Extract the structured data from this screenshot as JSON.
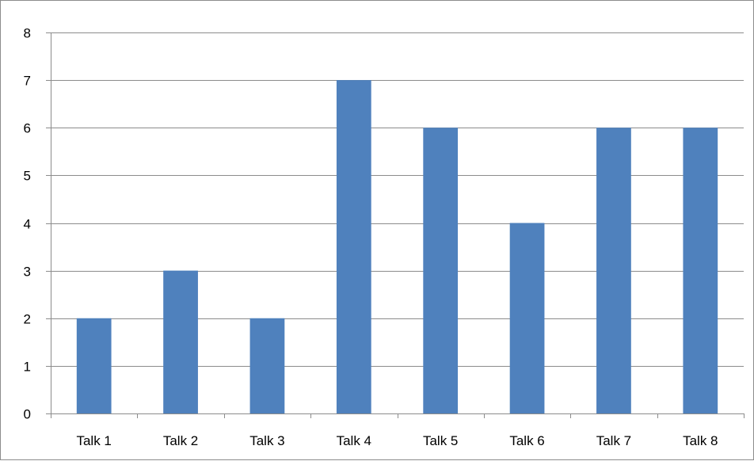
{
  "chart_data": {
    "type": "bar",
    "categories": [
      "Talk 1",
      "Talk 2",
      "Talk 3",
      "Talk 4",
      "Talk 5",
      "Talk 6",
      "Talk 7",
      "Talk 8"
    ],
    "values": [
      2,
      3,
      2,
      7,
      6,
      4,
      6,
      6
    ],
    "title": "",
    "xlabel": "",
    "ylabel": "",
    "ylim": [
      0,
      8
    ],
    "yticks": [
      "0",
      "1",
      "2",
      "3",
      "4",
      "5",
      "6",
      "7",
      "8"
    ],
    "grid": true,
    "legend": "none",
    "bar_color": "#4f81bd",
    "grid_color": "#8c8c8c"
  }
}
